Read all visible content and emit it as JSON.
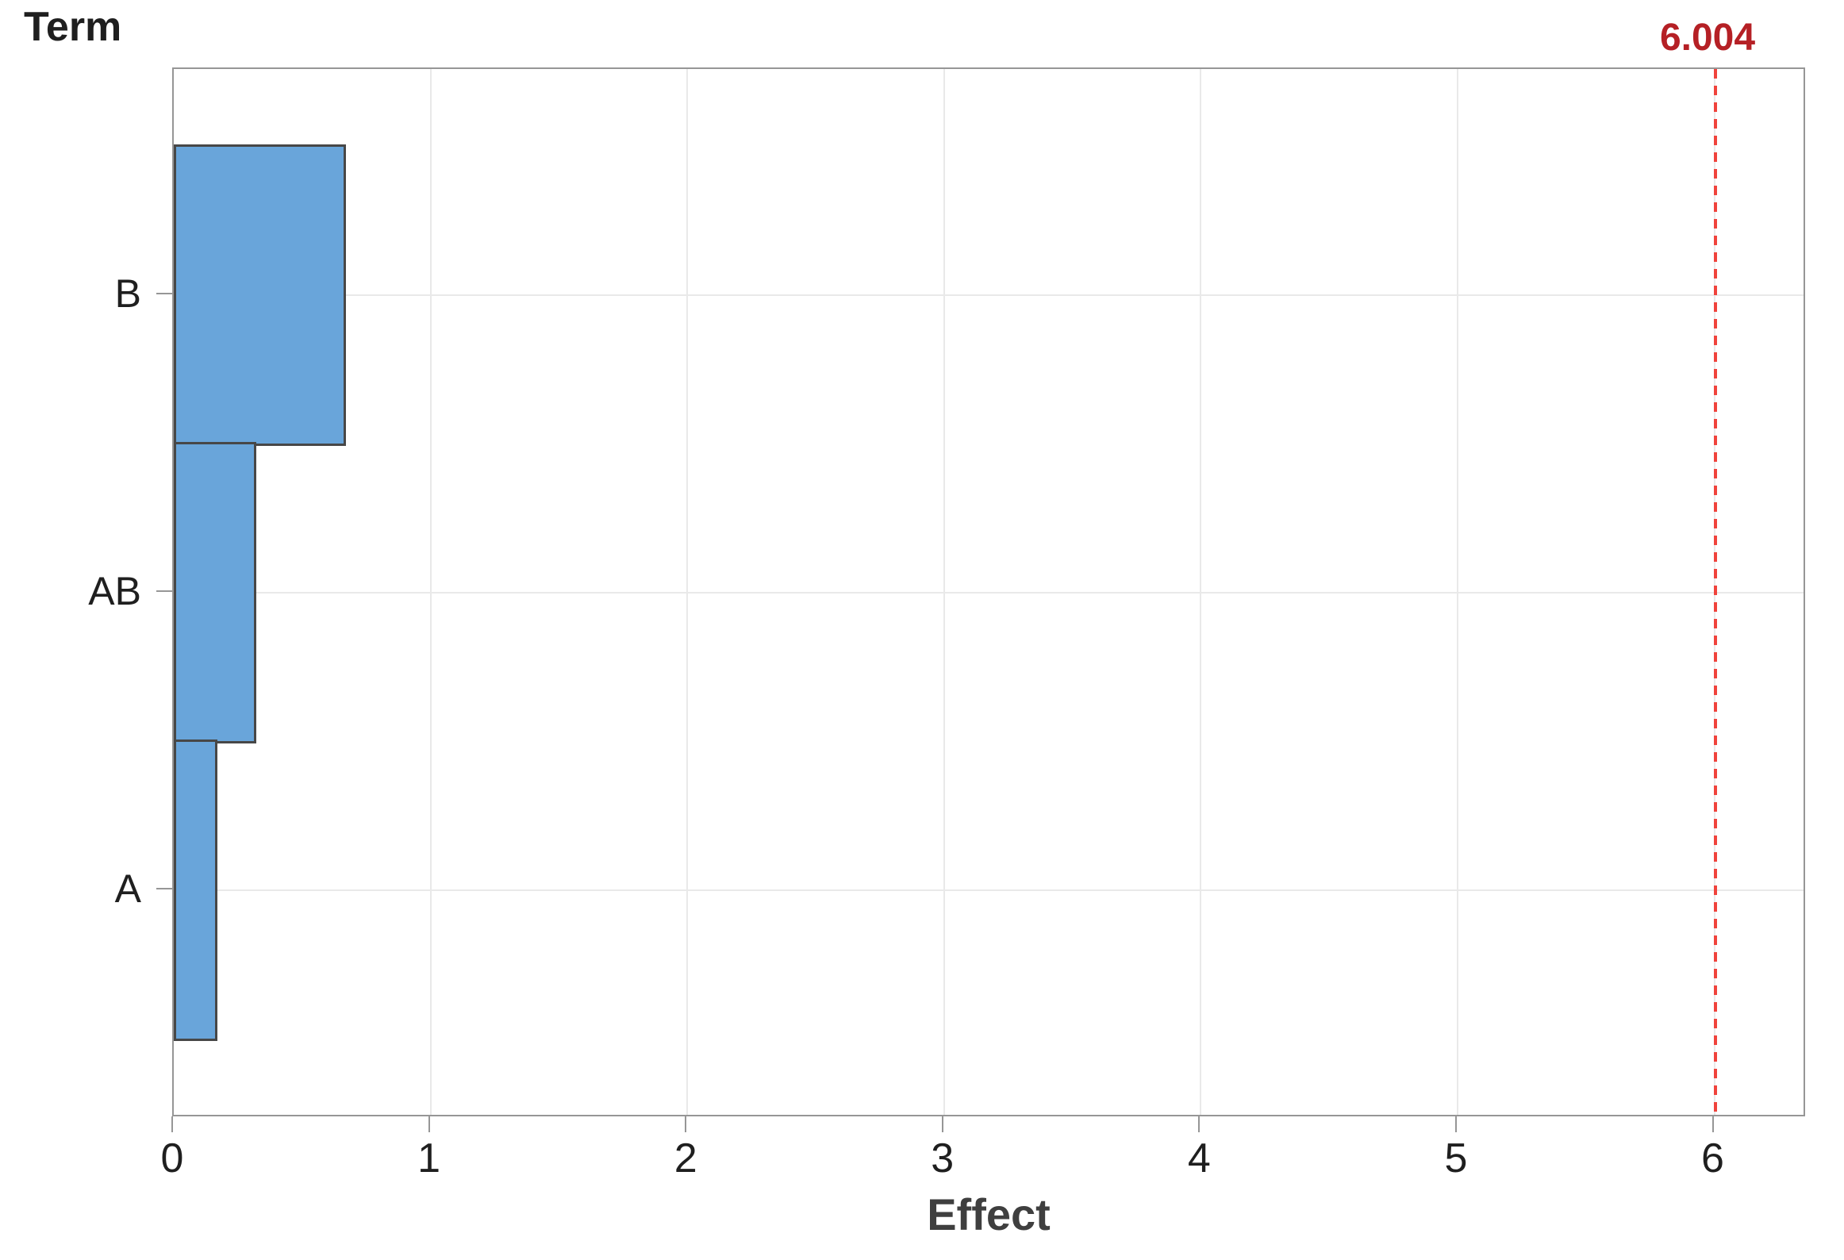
{
  "chart_data": {
    "type": "bar",
    "orientation": "horizontal",
    "title": "",
    "y_axis_title": "Term",
    "xlabel": "Effect",
    "categories": [
      "B",
      "AB",
      "A"
    ],
    "values": [
      0.67,
      0.32,
      0.17
    ],
    "x_ticks": [
      "0",
      "1",
      "2",
      "3",
      "4",
      "5",
      "6"
    ],
    "xlim": [
      0,
      6.36
    ],
    "grid": true,
    "legend": "none",
    "reference_line": {
      "value": 6.004,
      "label": "6.004"
    },
    "colors": {
      "bar_fill": "#69A5DA",
      "bar_border": "#474747",
      "plot_border": "#969696",
      "gridline": "#E9E9E9",
      "tick": "#969696",
      "reference_line": "#F0433C",
      "reference_label": "#B52025",
      "axis_title": "#3F3F3F",
      "tick_label": "#1F1F1F"
    }
  }
}
